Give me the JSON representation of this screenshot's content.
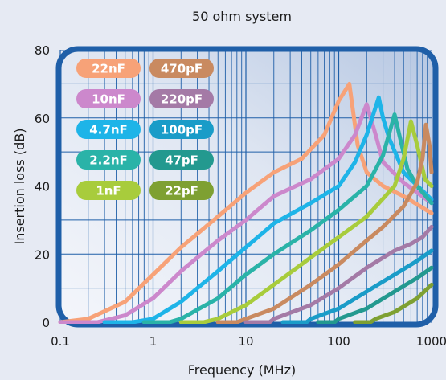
{
  "chart_data": {
    "type": "line",
    "title": "50 ohm system",
    "xlabel": "Frequency (MHz)",
    "ylabel": "Insertion loss (dB)",
    "x_scale": "log",
    "xlim": [
      0.1,
      1000
    ],
    "ylim": [
      0,
      80
    ],
    "x_ticks": [
      "0.1",
      "1",
      "10",
      "100",
      "1000"
    ],
    "y_ticks": [
      "0",
      "20",
      "40",
      "60",
      "80"
    ],
    "grid": true,
    "legend_position": "top-left",
    "series": [
      {
        "name": "22nF",
        "color": "#f7a278",
        "points": [
          [
            0.1,
            0
          ],
          [
            0.2,
            1
          ],
          [
            0.5,
            6
          ],
          [
            1,
            14
          ],
          [
            2,
            22
          ],
          [
            5,
            31
          ],
          [
            10,
            38
          ],
          [
            20,
            44
          ],
          [
            40,
            48
          ],
          [
            70,
            55
          ],
          [
            100,
            65
          ],
          [
            130,
            70
          ],
          [
            160,
            52
          ],
          [
            200,
            44
          ],
          [
            300,
            40
          ],
          [
            500,
            37
          ],
          [
            1000,
            32
          ]
        ]
      },
      {
        "name": "10nF",
        "color": "#cc88cc",
        "points": [
          [
            0.1,
            0
          ],
          [
            0.25,
            0
          ],
          [
            0.5,
            2
          ],
          [
            1,
            7
          ],
          [
            2,
            15
          ],
          [
            5,
            24
          ],
          [
            10,
            30
          ],
          [
            20,
            37
          ],
          [
            50,
            42
          ],
          [
            100,
            48
          ],
          [
            150,
            55
          ],
          [
            200,
            64
          ],
          [
            250,
            55
          ],
          [
            300,
            47
          ],
          [
            500,
            41
          ],
          [
            1000,
            35
          ]
        ]
      },
      {
        "name": "4.7nF",
        "color": "#1eb4e8",
        "points": [
          [
            0.3,
            0
          ],
          [
            0.6,
            0
          ],
          [
            1,
            1
          ],
          [
            2,
            6
          ],
          [
            5,
            15
          ],
          [
            10,
            22
          ],
          [
            20,
            29
          ],
          [
            50,
            35
          ],
          [
            100,
            40
          ],
          [
            150,
            47
          ],
          [
            200,
            55
          ],
          [
            270,
            66
          ],
          [
            300,
            60
          ],
          [
            350,
            54
          ],
          [
            500,
            44
          ],
          [
            1000,
            36
          ]
        ]
      },
      {
        "name": "2.2nF",
        "color": "#2ab3a8",
        "points": [
          [
            0.8,
            0
          ],
          [
            1.5,
            0
          ],
          [
            2,
            1
          ],
          [
            5,
            7
          ],
          [
            10,
            14
          ],
          [
            20,
            20
          ],
          [
            50,
            27
          ],
          [
            100,
            33
          ],
          [
            200,
            40
          ],
          [
            300,
            49
          ],
          [
            400,
            61
          ],
          [
            450,
            55
          ],
          [
            550,
            45
          ],
          [
            700,
            40
          ],
          [
            1000,
            35
          ]
        ]
      },
      {
        "name": "1nF",
        "color": "#a8cc3c",
        "points": [
          [
            2,
            0
          ],
          [
            3.5,
            0
          ],
          [
            5,
            1
          ],
          [
            10,
            5
          ],
          [
            20,
            11
          ],
          [
            50,
            19
          ],
          [
            100,
            25
          ],
          [
            200,
            31
          ],
          [
            400,
            40
          ],
          [
            500,
            48
          ],
          [
            600,
            59
          ],
          [
            700,
            52
          ],
          [
            850,
            42
          ],
          [
            1000,
            40
          ]
        ]
      },
      {
        "name": "470pF",
        "color": "#c98a60",
        "points": [
          [
            5,
            0
          ],
          [
            8,
            0
          ],
          [
            10,
            1
          ],
          [
            20,
            4
          ],
          [
            50,
            11
          ],
          [
            100,
            17
          ],
          [
            200,
            24
          ],
          [
            300,
            28
          ],
          [
            500,
            34
          ],
          [
            700,
            41
          ],
          [
            800,
            48
          ],
          [
            870,
            58
          ],
          [
            950,
            52
          ],
          [
            1000,
            44
          ]
        ]
      },
      {
        "name": "220pF",
        "color": "#a47aa6",
        "points": [
          [
            10,
            0
          ],
          [
            18,
            0
          ],
          [
            20,
            1
          ],
          [
            50,
            5
          ],
          [
            100,
            10
          ],
          [
            200,
            16
          ],
          [
            400,
            21
          ],
          [
            600,
            23
          ],
          [
            800,
            25
          ],
          [
            1000,
            28
          ]
        ]
      },
      {
        "name": "100pF",
        "color": "#1a9cc8",
        "points": [
          [
            25,
            0
          ],
          [
            45,
            0
          ],
          [
            50,
            1
          ],
          [
            100,
            4
          ],
          [
            200,
            9
          ],
          [
            400,
            14
          ],
          [
            700,
            18
          ],
          [
            1000,
            21
          ]
        ]
      },
      {
        "name": "47pF",
        "color": "#23998f",
        "points": [
          [
            60,
            0
          ],
          [
            90,
            0
          ],
          [
            100,
            1
          ],
          [
            200,
            4
          ],
          [
            400,
            9
          ],
          [
            700,
            13
          ],
          [
            1000,
            16
          ]
        ]
      },
      {
        "name": "22pF",
        "color": "#7ea032",
        "points": [
          [
            150,
            0
          ],
          [
            220,
            0
          ],
          [
            250,
            1
          ],
          [
            400,
            3
          ],
          [
            700,
            7
          ],
          [
            1000,
            11
          ]
        ]
      }
    ],
    "legend": [
      {
        "label": "22nF",
        "color": "#f7a278"
      },
      {
        "label": "470pF",
        "color": "#c98a60"
      },
      {
        "label": "10nF",
        "color": "#cc88cc"
      },
      {
        "label": "220pF",
        "color": "#a47aa6"
      },
      {
        "label": "4.7nF",
        "color": "#1eb4e8"
      },
      {
        "label": "100pF",
        "color": "#1a9cc8"
      },
      {
        "label": "2.2nF",
        "color": "#2ab3a8"
      },
      {
        "label": "47pF",
        "color": "#23998f"
      },
      {
        "label": "1nF",
        "color": "#a8cc3c"
      },
      {
        "label": "22pF",
        "color": "#7ea032"
      }
    ],
    "frame_color": "#1f5fa8"
  }
}
